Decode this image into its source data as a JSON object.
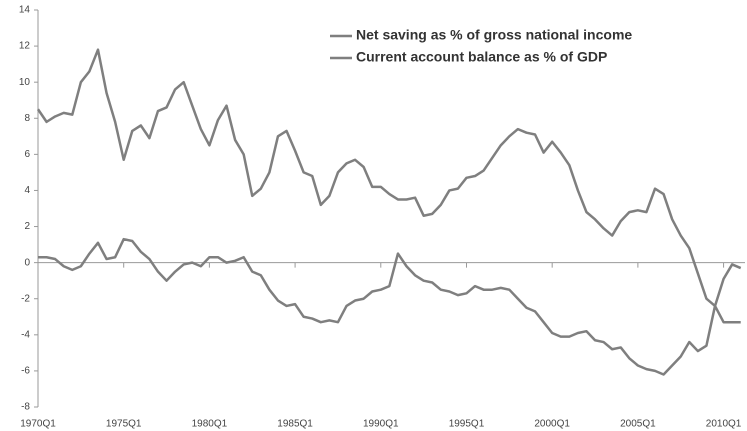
{
  "chart_data": {
    "type": "line",
    "x": [
      1970,
      1970.5,
      1971,
      1971.5,
      1972,
      1972.5,
      1973,
      1973.5,
      1974,
      1974.5,
      1975,
      1975.5,
      1976,
      1976.5,
      1977,
      1977.5,
      1978,
      1978.5,
      1979,
      1979.5,
      1980,
      1980.5,
      1981,
      1981.5,
      1982,
      1982.5,
      1983,
      1983.5,
      1984,
      1984.5,
      1985,
      1985.5,
      1986,
      1986.5,
      1987,
      1987.5,
      1988,
      1988.5,
      1989,
      1989.5,
      1990,
      1990.5,
      1991,
      1991.5,
      1992,
      1992.5,
      1993,
      1993.5,
      1994,
      1994.5,
      1995,
      1995.5,
      1996,
      1996.5,
      1997,
      1997.5,
      1998,
      1998.5,
      1999,
      1999.5,
      2000,
      2000.5,
      2001,
      2001.5,
      2002,
      2002.5,
      2003,
      2003.5,
      2004,
      2004.5,
      2005,
      2005.5,
      2006,
      2006.5,
      2007,
      2007.5,
      2008,
      2008.5,
      2009,
      2009.5,
      2010,
      2010.5,
      2011
    ],
    "series": [
      {
        "name": "Net saving as % of gross national income",
        "color": "#7f7f7f",
        "values": [
          8.5,
          7.8,
          8.1,
          8.3,
          8.2,
          10.0,
          10.6,
          11.8,
          9.4,
          7.8,
          5.7,
          7.3,
          7.6,
          6.9,
          8.4,
          8.6,
          9.6,
          10.0,
          8.7,
          7.4,
          6.5,
          7.9,
          8.7,
          6.8,
          6.0,
          3.7,
          4.1,
          5.0,
          7.0,
          7.3,
          6.2,
          5.0,
          4.8,
          3.2,
          3.7,
          5.0,
          5.5,
          5.7,
          5.3,
          4.2,
          4.2,
          3.8,
          3.5,
          3.5,
          3.6,
          2.6,
          2.7,
          3.2,
          4.0,
          4.1,
          4.7,
          4.8,
          5.1,
          5.8,
          6.5,
          7.0,
          7.4,
          7.2,
          7.1,
          6.1,
          6.7,
          6.1,
          5.4,
          4.0,
          2.8,
          2.4,
          1.9,
          1.5,
          2.3,
          2.8,
          2.9,
          2.8,
          4.1,
          3.8,
          2.4,
          1.5,
          0.8,
          -0.6,
          -2.0,
          -2.4,
          -3.3,
          -3.3,
          -3.3
        ]
      },
      {
        "name": "Current account balance as % of GDP",
        "color": "#7f7f7f",
        "values": [
          0.3,
          0.3,
          0.2,
          -0.2,
          -0.4,
          -0.2,
          0.5,
          1.1,
          0.2,
          0.3,
          1.3,
          1.2,
          0.6,
          0.2,
          -0.5,
          -1.0,
          -0.5,
          -0.1,
          0.0,
          -0.2,
          0.3,
          0.3,
          0.0,
          0.1,
          0.3,
          -0.5,
          -0.7,
          -1.5,
          -2.1,
          -2.4,
          -2.3,
          -3.0,
          -3.1,
          -3.3,
          -3.2,
          -3.3,
          -2.4,
          -2.1,
          -2.0,
          -1.6,
          -1.5,
          -1.3,
          0.5,
          -0.2,
          -0.7,
          -1.0,
          -1.1,
          -1.5,
          -1.6,
          -1.8,
          -1.7,
          -1.3,
          -1.5,
          -1.5,
          -1.4,
          -1.5,
          -2.0,
          -2.5,
          -2.7,
          -3.3,
          -3.9,
          -4.1,
          -4.1,
          -3.9,
          -3.8,
          -4.3,
          -4.4,
          -4.8,
          -4.7,
          -5.3,
          -5.7,
          -5.9,
          -6.0,
          -6.2,
          -5.7,
          -5.2,
          -4.4,
          -4.9,
          -4.6,
          -2.4,
          -0.9,
          -0.1,
          -0.3
        ]
      }
    ],
    "xlim": [
      1970,
      2011.25
    ],
    "xticks": [
      {
        "value": 1970,
        "label": "1970Q1"
      },
      {
        "value": 1975,
        "label": "1975Q1"
      },
      {
        "value": 1980,
        "label": "1980Q1"
      },
      {
        "value": 1985,
        "label": "1985Q1"
      },
      {
        "value": 1990,
        "label": "1990Q1"
      },
      {
        "value": 1995,
        "label": "1995Q1"
      },
      {
        "value": 2000,
        "label": "2000Q1"
      },
      {
        "value": 2005,
        "label": "2005Q1"
      },
      {
        "value": 2010,
        "label": "2010Q1"
      }
    ],
    "ylim": [
      -8,
      14
    ],
    "yticks": [
      -8,
      -6,
      -4,
      -2,
      0,
      2,
      4,
      6,
      8,
      10,
      12,
      14
    ],
    "grid": false,
    "legend": "upper right"
  }
}
